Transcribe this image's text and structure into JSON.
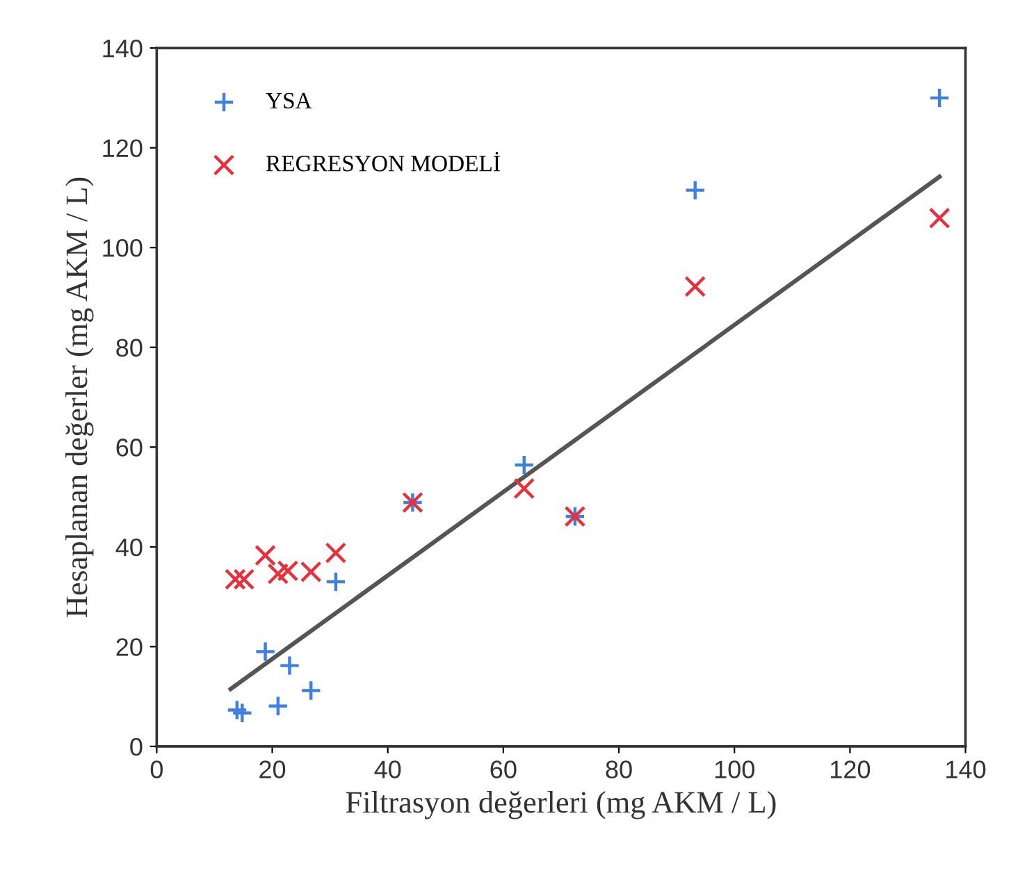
{
  "chart_data": {
    "type": "scatter",
    "xlabel": "Filtrasyon değerleri (mg AKM / L)",
    "ylabel": "Hesaplanan değerler (mg AKM / L)",
    "xlim": [
      0,
      140
    ],
    "xticks": [
      0,
      20,
      40,
      60,
      80,
      100,
      120,
      140
    ],
    "ylim": [
      0,
      140
    ],
    "yticks": [
      0,
      20,
      40,
      60,
      80,
      100,
      120,
      140
    ],
    "grid": false,
    "legend": "top left",
    "series": [
      {
        "name": "YSA",
        "color": "#3f7fe0",
        "marker": "plus",
        "x": [
          13.9,
          14.8,
          18.8,
          21,
          23,
          26.7,
          31,
          44.3,
          63.6,
          72.4,
          93.2,
          135.5
        ],
        "values": [
          7.3,
          6.7,
          19,
          8.1,
          16.2,
          11.2,
          33,
          48.9,
          56.4,
          46.1,
          111.5,
          130
        ]
      },
      {
        "name": "REGRESYON MODELİ",
        "color": "#e8303c",
        "marker": "cross",
        "x": [
          13.6,
          15.1,
          18.8,
          21,
          22.7,
          26.7,
          31,
          44.3,
          63.6,
          72.4,
          93.2,
          135.5
        ],
        "values": [
          33.5,
          33.5,
          38.3,
          34.6,
          35.2,
          35,
          38.8,
          48.9,
          51.7,
          46.1,
          92.2,
          105.9
        ]
      },
      {
        "type": "line",
        "color": "#555555",
        "line_style": "solid",
        "x": [
          12.8,
          135.5
        ],
        "values": [
          11.5,
          114.2
        ]
      }
    ]
  }
}
